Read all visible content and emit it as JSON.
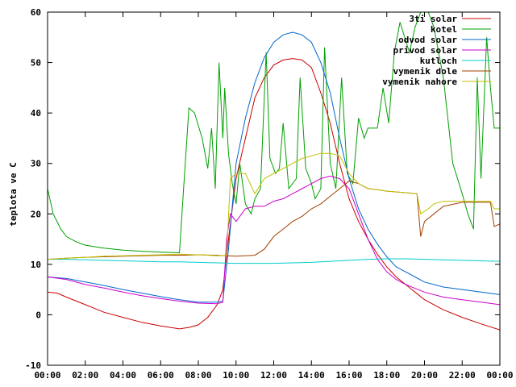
{
  "chart_data": {
    "type": "line",
    "ylabel": "teplota ve C",
    "xlim": [
      0,
      24
    ],
    "ylim": [
      -10,
      60
    ],
    "x_ticks": [
      {
        "v": 0,
        "label": "00:00"
      },
      {
        "v": 2,
        "label": "02:00"
      },
      {
        "v": 4,
        "label": "04:00"
      },
      {
        "v": 6,
        "label": "06:00"
      },
      {
        "v": 8,
        "label": "08:00"
      },
      {
        "v": 10,
        "label": "10:00"
      },
      {
        "v": 12,
        "label": "12:00"
      },
      {
        "v": 14,
        "label": "14:00"
      },
      {
        "v": 16,
        "label": "16:00"
      },
      {
        "v": 18,
        "label": "18:00"
      },
      {
        "v": 20,
        "label": "20:00"
      },
      {
        "v": 22,
        "label": "22:00"
      },
      {
        "v": 24,
        "label": "00:00"
      }
    ],
    "y_ticks": [
      {
        "v": -10,
        "label": "-10"
      },
      {
        "v": 0,
        "label": "0"
      },
      {
        "v": 10,
        "label": "10"
      },
      {
        "v": 20,
        "label": "20"
      },
      {
        "v": 30,
        "label": "30"
      },
      {
        "v": 40,
        "label": "40"
      },
      {
        "v": 50,
        "label": "50"
      },
      {
        "v": 60,
        "label": "60"
      }
    ],
    "grid": false,
    "legend_position": "top-right",
    "series": [
      {
        "name": "3ti solar",
        "color": "#cc0000",
        "points": [
          [
            0,
            4.5
          ],
          [
            0.5,
            4.3
          ],
          [
            1,
            3.5
          ],
          [
            2,
            2
          ],
          [
            3,
            0.5
          ],
          [
            4,
            -0.5
          ],
          [
            5,
            -1.5
          ],
          [
            6,
            -2.2
          ],
          [
            7,
            -2.8
          ],
          [
            7.5,
            -2.5
          ],
          [
            8,
            -2
          ],
          [
            8.5,
            -0.5
          ],
          [
            9,
            2
          ],
          [
            9.3,
            5
          ],
          [
            9.6,
            15
          ],
          [
            10,
            27
          ],
          [
            10.5,
            35
          ],
          [
            11,
            43
          ],
          [
            11.5,
            47
          ],
          [
            12,
            49.5
          ],
          [
            12.5,
            50.5
          ],
          [
            13,
            50.8
          ],
          [
            13.5,
            50.5
          ],
          [
            14,
            49
          ],
          [
            14.5,
            44
          ],
          [
            15,
            38
          ],
          [
            15.5,
            30
          ],
          [
            16,
            23
          ],
          [
            16.5,
            18.5
          ],
          [
            17,
            15
          ],
          [
            17.5,
            12
          ],
          [
            18,
            9.5
          ],
          [
            18.5,
            7.5
          ],
          [
            19,
            6
          ],
          [
            19.5,
            4.5
          ],
          [
            20,
            3
          ],
          [
            21,
            1
          ],
          [
            22,
            -0.5
          ],
          [
            23,
            -1.8
          ],
          [
            24,
            -3
          ]
        ]
      },
      {
        "name": "kotel",
        "color": "#00a000",
        "points": [
          [
            0,
            25
          ],
          [
            0.3,
            20
          ],
          [
            0.7,
            17
          ],
          [
            1,
            15.5
          ],
          [
            1.5,
            14.5
          ],
          [
            2,
            13.8
          ],
          [
            3,
            13.2
          ],
          [
            4,
            12.8
          ],
          [
            5,
            12.6
          ],
          [
            6,
            12.4
          ],
          [
            7,
            12.3
          ],
          [
            7.2,
            24
          ],
          [
            7.5,
            41
          ],
          [
            7.8,
            40
          ],
          [
            8.2,
            35
          ],
          [
            8.5,
            29
          ],
          [
            8.7,
            37
          ],
          [
            8.9,
            25
          ],
          [
            9.1,
            50
          ],
          [
            9.3,
            35
          ],
          [
            9.4,
            45
          ],
          [
            9.6,
            32
          ],
          [
            9.8,
            26
          ],
          [
            10,
            22
          ],
          [
            10.2,
            30
          ],
          [
            10.5,
            22
          ],
          [
            10.8,
            20
          ],
          [
            11,
            23
          ],
          [
            11.3,
            25
          ],
          [
            11.6,
            52
          ],
          [
            11.8,
            31
          ],
          [
            12.1,
            28
          ],
          [
            12.3,
            29
          ],
          [
            12.5,
            38
          ],
          [
            12.8,
            25
          ],
          [
            13.2,
            27
          ],
          [
            13.4,
            47
          ],
          [
            13.7,
            29
          ],
          [
            14,
            26
          ],
          [
            14.2,
            23
          ],
          [
            14.5,
            25
          ],
          [
            14.7,
            53
          ],
          [
            15,
            30
          ],
          [
            15.3,
            25
          ],
          [
            15.6,
            47
          ],
          [
            15.9,
            28
          ],
          [
            16.2,
            26
          ],
          [
            16.5,
            39
          ],
          [
            16.8,
            35
          ],
          [
            17,
            37
          ],
          [
            17.5,
            37
          ],
          [
            17.8,
            45
          ],
          [
            18.1,
            38
          ],
          [
            18.4,
            52
          ],
          [
            18.7,
            58
          ],
          [
            19.2,
            52
          ],
          [
            19.5,
            57
          ],
          [
            20,
            62
          ],
          [
            20.5,
            57
          ],
          [
            21,
            47
          ],
          [
            21.5,
            30
          ],
          [
            22,
            24
          ],
          [
            22.3,
            20
          ],
          [
            22.6,
            17
          ],
          [
            22.8,
            47
          ],
          [
            23,
            27
          ],
          [
            23.3,
            55
          ],
          [
            23.5,
            45
          ],
          [
            23.7,
            37
          ],
          [
            24,
            37
          ]
        ]
      },
      {
        "name": "odvod solar",
        "color": "#0066cc",
        "points": [
          [
            0,
            7.5
          ],
          [
            1,
            7.2
          ],
          [
            2,
            6.5
          ],
          [
            3,
            5.8
          ],
          [
            4,
            5
          ],
          [
            5,
            4.3
          ],
          [
            6,
            3.6
          ],
          [
            7,
            3
          ],
          [
            8,
            2.5
          ],
          [
            9,
            2.5
          ],
          [
            9.3,
            2.7
          ],
          [
            9.6,
            13
          ],
          [
            10,
            30
          ],
          [
            10.5,
            39
          ],
          [
            11,
            46
          ],
          [
            11.5,
            51
          ],
          [
            12,
            54
          ],
          [
            12.5,
            55.5
          ],
          [
            13,
            56
          ],
          [
            13.5,
            55.5
          ],
          [
            14,
            54
          ],
          [
            14.5,
            50
          ],
          [
            15,
            44
          ],
          [
            15.5,
            35
          ],
          [
            16,
            27
          ],
          [
            16.5,
            21
          ],
          [
            17,
            17
          ],
          [
            17.5,
            14
          ],
          [
            18,
            11.5
          ],
          [
            18.5,
            9.5
          ],
          [
            19,
            8.5
          ],
          [
            19.5,
            7.5
          ],
          [
            20,
            6.5
          ],
          [
            21,
            5.5
          ],
          [
            22,
            5
          ],
          [
            23,
            4.5
          ],
          [
            24,
            4
          ]
        ]
      },
      {
        "name": "privod solar",
        "color": "#cc00cc",
        "points": [
          [
            0,
            7.5
          ],
          [
            1,
            7
          ],
          [
            2,
            6
          ],
          [
            3,
            5.3
          ],
          [
            4,
            4.5
          ],
          [
            5,
            3.8
          ],
          [
            6,
            3.2
          ],
          [
            7,
            2.7
          ],
          [
            8,
            2.3
          ],
          [
            9,
            2.2
          ],
          [
            9.3,
            2.5
          ],
          [
            9.5,
            15
          ],
          [
            9.7,
            20
          ],
          [
            10,
            18.5
          ],
          [
            10.5,
            21
          ],
          [
            11,
            21.5
          ],
          [
            11.5,
            21.5
          ],
          [
            12,
            22.5
          ],
          [
            12.5,
            23
          ],
          [
            13,
            24
          ],
          [
            13.5,
            25
          ],
          [
            14,
            26
          ],
          [
            14.5,
            27
          ],
          [
            15,
            27.5
          ],
          [
            15.5,
            27
          ],
          [
            16,
            25
          ],
          [
            16.5,
            20
          ],
          [
            17,
            15
          ],
          [
            17.5,
            11
          ],
          [
            18,
            8.5
          ],
          [
            18.5,
            7
          ],
          [
            19,
            6
          ],
          [
            20,
            4.5
          ],
          [
            21,
            3.5
          ],
          [
            22,
            3
          ],
          [
            23,
            2.5
          ],
          [
            24,
            2
          ]
        ]
      },
      {
        "name": "kutloch",
        "color": "#00cccc",
        "points": [
          [
            0,
            11
          ],
          [
            1,
            11
          ],
          [
            2,
            10.9
          ],
          [
            3,
            10.8
          ],
          [
            4,
            10.7
          ],
          [
            5,
            10.6
          ],
          [
            6,
            10.5
          ],
          [
            7,
            10.5
          ],
          [
            8,
            10.4
          ],
          [
            9,
            10.3
          ],
          [
            10,
            10.2
          ],
          [
            11,
            10.2
          ],
          [
            12,
            10.2
          ],
          [
            13,
            10.3
          ],
          [
            14,
            10.4
          ],
          [
            15,
            10.6
          ],
          [
            16,
            10.8
          ],
          [
            17,
            11
          ],
          [
            18,
            11.1
          ],
          [
            19,
            11.1
          ],
          [
            20,
            11
          ],
          [
            21,
            10.9
          ],
          [
            22,
            10.8
          ],
          [
            23,
            10.7
          ],
          [
            24,
            10.6
          ]
        ]
      },
      {
        "name": "vymenik dole",
        "color": "#a04000",
        "points": [
          [
            0,
            11
          ],
          [
            1,
            11.2
          ],
          [
            2,
            11.4
          ],
          [
            3,
            11.5
          ],
          [
            4,
            11.6
          ],
          [
            5,
            11.7
          ],
          [
            6,
            11.8
          ],
          [
            7,
            11.8
          ],
          [
            8,
            11.9
          ],
          [
            9,
            11.8
          ],
          [
            10,
            11.6
          ],
          [
            11,
            11.8
          ],
          [
            11.5,
            13
          ],
          [
            12,
            15.5
          ],
          [
            12.5,
            17
          ],
          [
            13,
            18.5
          ],
          [
            13.5,
            19.5
          ],
          [
            14,
            21
          ],
          [
            14.5,
            22
          ],
          [
            15,
            23.5
          ],
          [
            15.5,
            25
          ],
          [
            16,
            26.5
          ],
          [
            16.5,
            26
          ],
          [
            17,
            25
          ],
          [
            17.5,
            24.8
          ],
          [
            18,
            24.5
          ],
          [
            19,
            24.2
          ],
          [
            19.6,
            24
          ],
          [
            19.8,
            15.5
          ],
          [
            20,
            18.5
          ],
          [
            20.5,
            20
          ],
          [
            21,
            21.5
          ],
          [
            22,
            22.3
          ],
          [
            23,
            22.3
          ],
          [
            23.5,
            22.3
          ],
          [
            23.7,
            17.5
          ],
          [
            24,
            18
          ]
        ]
      },
      {
        "name": "vymenik nahore",
        "color": "#c0c000",
        "points": [
          [
            0,
            11
          ],
          [
            1,
            11.2
          ],
          [
            2,
            11.4
          ],
          [
            3,
            11.6
          ],
          [
            4,
            11.7
          ],
          [
            5,
            11.8
          ],
          [
            6,
            11.9
          ],
          [
            7,
            12
          ],
          [
            8,
            11.9
          ],
          [
            9,
            11.7
          ],
          [
            9.5,
            11.8
          ],
          [
            9.7,
            27
          ],
          [
            10,
            28
          ],
          [
            10.5,
            28
          ],
          [
            11,
            24
          ],
          [
            11.5,
            27
          ],
          [
            12,
            28
          ],
          [
            12.5,
            29
          ],
          [
            13,
            30
          ],
          [
            13.5,
            31
          ],
          [
            14,
            31.5
          ],
          [
            14.5,
            32
          ],
          [
            15,
            32
          ],
          [
            15.5,
            31.5
          ],
          [
            16,
            28
          ],
          [
            16.5,
            26
          ],
          [
            17,
            25
          ],
          [
            17.5,
            24.8
          ],
          [
            18,
            24.5
          ],
          [
            19,
            24.2
          ],
          [
            19.6,
            24
          ],
          [
            19.8,
            20
          ],
          [
            20.2,
            21
          ],
          [
            20.5,
            22
          ],
          [
            21,
            22.5
          ],
          [
            22,
            22.5
          ],
          [
            23,
            22.5
          ],
          [
            23.5,
            22.5
          ],
          [
            23.7,
            21
          ],
          [
            24,
            21
          ]
        ]
      }
    ]
  }
}
